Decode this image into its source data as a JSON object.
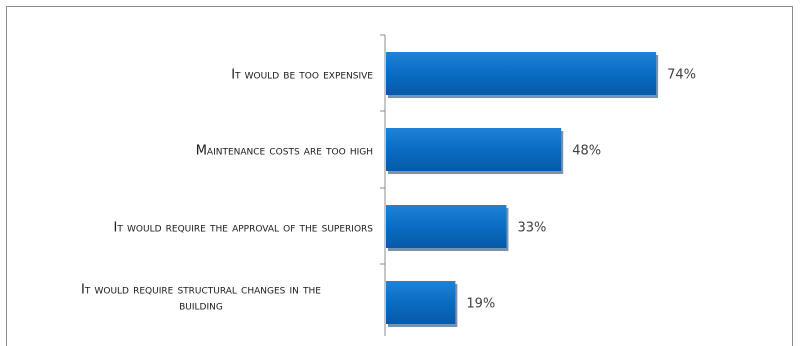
{
  "chart_data": {
    "type": "bar",
    "orientation": "horizontal",
    "categories": [
      [
        "It would be too expensive"
      ],
      [
        "Maintenance costs are too high"
      ],
      [
        "It would require the approval of the superiors"
      ],
      [
        "It would require structural changes in the",
        "building"
      ]
    ],
    "values": [
      74,
      48,
      33,
      19
    ],
    "data_labels": [
      "74%",
      "48%",
      "33%",
      "19%"
    ],
    "title": "",
    "xlabel": "",
    "ylabel": "",
    "xlim": [
      0,
      100
    ],
    "grid": false,
    "legend": "none",
    "colors": {
      "bar": "#0a6cc2",
      "bar_shadow": "#0a3a6e",
      "axis": "#8c8c8c",
      "border": "#8c8c8c"
    }
  }
}
